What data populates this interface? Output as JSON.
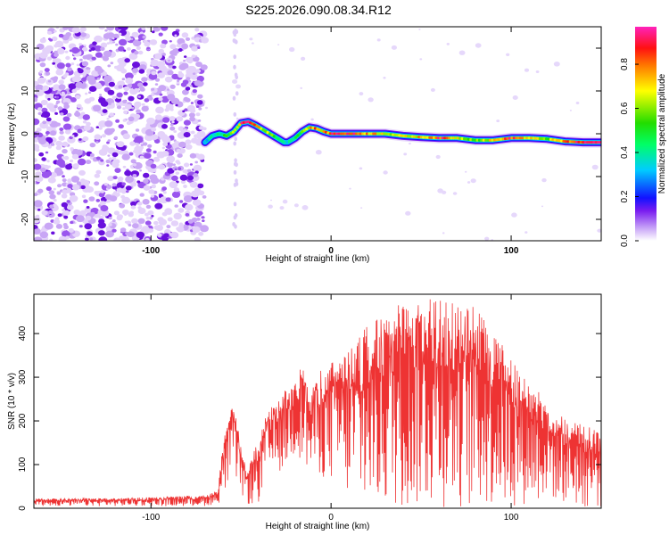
{
  "title": "S225.2026.090.08.34.R12",
  "chart_data": [
    {
      "type": "heatmap",
      "xlabel": "Height of straight line (km)",
      "ylabel": "Frequency (Hz)",
      "xlim": [
        -165,
        150
      ],
      "ylim": [
        -25,
        25
      ],
      "x_ticks": [
        -100,
        0,
        100
      ],
      "y_ticks": [
        -20,
        -10,
        0,
        10,
        20
      ],
      "colorbar": {
        "label": "Normalized spectral amplitude",
        "range": [
          0,
          0.97
        ],
        "ticks": [
          0.0,
          0.2,
          0.4,
          0.6,
          0.8
        ]
      },
      "noise_region_x": [
        -165,
        -70
      ],
      "ridge": {
        "x": [
          -70,
          -66,
          -62,
          -58,
          -54,
          -50,
          -46,
          -42,
          -38,
          -34,
          -30,
          -26,
          -24,
          -20,
          -16,
          -12,
          -8,
          -4,
          0,
          10,
          20,
          30,
          40,
          50,
          60,
          70,
          80,
          90,
          100,
          110,
          120,
          130,
          140,
          150
        ],
        "y": [
          -2,
          -0.5,
          0,
          -0.5,
          0.5,
          2.5,
          2.8,
          2,
          1,
          0,
          -1,
          -2,
          -2,
          -1,
          0.5,
          1.5,
          1.2,
          0.5,
          0,
          0,
          0,
          0,
          -0.5,
          -0.8,
          -1,
          -1,
          -1.5,
          -1.5,
          -1,
          -1,
          -1.2,
          -1.8,
          -2,
          -2
        ],
        "amplitude": [
          0.3,
          0.4,
          0.45,
          0.5,
          0.6,
          0.9,
          0.95,
          0.85,
          0.7,
          0.6,
          0.5,
          0.4,
          0.35,
          0.5,
          0.6,
          0.75,
          0.8,
          0.7,
          0.95,
          0.9,
          0.8,
          0.7,
          0.65,
          0.75,
          0.9,
          0.7,
          0.6,
          0.7,
          0.9,
          0.7,
          0.6,
          0.8,
          0.95,
          0.95
        ]
      }
    },
    {
      "type": "line",
      "xlabel": "Height of straight line (km)",
      "ylabel": "SNR (10 * v/v)",
      "xlim": [
        -165,
        150
      ],
      "ylim": [
        0,
        490
      ],
      "x_ticks": [
        -100,
        0,
        100
      ],
      "y_ticks": [
        0,
        100,
        200,
        300,
        400
      ],
      "color": "#ee3333",
      "envelope": {
        "x": [
          -165,
          -100,
          -70,
          -63,
          -60,
          -57,
          -55,
          -52,
          -50,
          -47,
          -44,
          -40,
          -37,
          -35,
          -30,
          -25,
          -20,
          -15,
          -12,
          -10,
          -5,
          0,
          5,
          10,
          20,
          30,
          40,
          50,
          60,
          70,
          80,
          90,
          100,
          110,
          120,
          130,
          140,
          150
        ],
        "upper": [
          22,
          25,
          30,
          40,
          150,
          200,
          250,
          200,
          140,
          100,
          130,
          150,
          210,
          230,
          240,
          280,
          290,
          340,
          260,
          300,
          320,
          340,
          360,
          370,
          420,
          450,
          470,
          480,
          480,
          470,
          460,
          420,
          340,
          290,
          250,
          210,
          190,
          180
        ],
        "lower": [
          5,
          5,
          5,
          10,
          20,
          50,
          80,
          60,
          30,
          10,
          5,
          10,
          40,
          60,
          80,
          90,
          120,
          110,
          60,
          80,
          70,
          60,
          40,
          20,
          0,
          0,
          0,
          0,
          0,
          0,
          0,
          0,
          0,
          10,
          20,
          10,
          0,
          0
        ]
      }
    }
  ]
}
